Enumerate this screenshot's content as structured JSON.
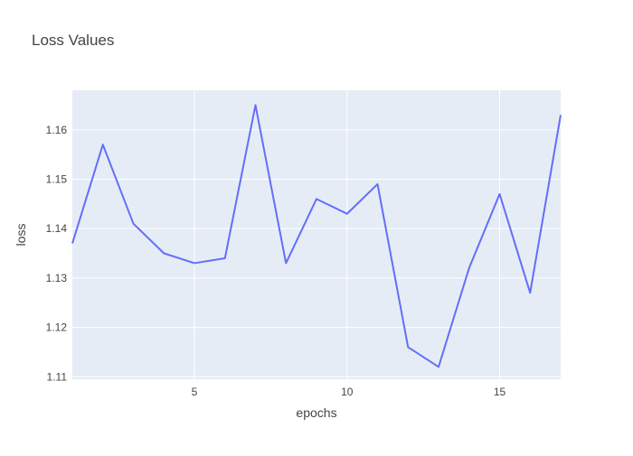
{
  "chart_data": {
    "type": "line",
    "title": "Loss Values",
    "xlabel": "epochs",
    "ylabel": "loss",
    "xlim": [
      1,
      17
    ],
    "ylim": [
      1.1095,
      1.168
    ],
    "x_ticks": [
      5,
      10,
      15
    ],
    "y_ticks": [
      1.11,
      1.12,
      1.13,
      1.14,
      1.15,
      1.16
    ],
    "grid": true,
    "colors": {
      "plot_background": "#e5ecf6",
      "grid": "#ffffff",
      "line": "#636efa",
      "text": "#444444",
      "title": "#444444"
    },
    "series": [
      {
        "x": [
          1,
          2,
          3,
          4,
          5,
          6,
          7,
          8,
          9,
          10,
          11,
          12,
          13,
          14,
          15,
          16,
          17
        ],
        "values": [
          1.137,
          1.157,
          1.141,
          1.135,
          1.133,
          1.134,
          1.165,
          1.133,
          1.146,
          1.143,
          1.149,
          1.116,
          1.112,
          1.132,
          1.147,
          1.127,
          1.163
        ]
      }
    ]
  }
}
